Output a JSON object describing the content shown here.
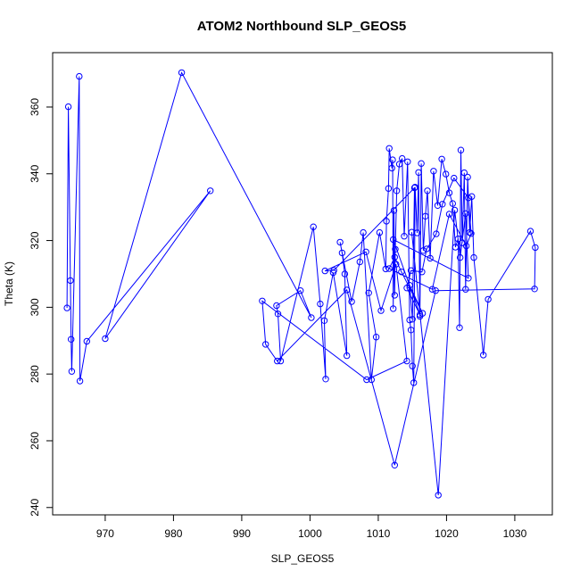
{
  "chart_data": {
    "type": "line",
    "title": "ATOM2 Northbound SLP_GEOS5",
    "xlabel": "SLP_GEOS5",
    "ylabel": "Theta (K)",
    "xlim": [
      962.3,
      1035.5
    ],
    "ylim": [
      237.8,
      376.3
    ],
    "xticks": [
      970,
      980,
      990,
      1000,
      1010,
      1020,
      1030
    ],
    "yticks": [
      240,
      260,
      280,
      300,
      320,
      340,
      360
    ],
    "markers": "open-circle",
    "line_color": "#0000ff",
    "series": [
      {
        "x": [
          964.4,
          964.6,
          964.9,
          965.0,
          965.1,
          966.2,
          966.3,
          967.3,
          985.4,
          970.0,
          981.2,
          1000.2,
          998.6,
          995.1,
          995.3,
          995.7,
          1000.5,
          1001.5,
          1002.3,
          1002.1,
          1003.4,
          1005.4,
          1005.1,
          1004.7,
          1004.4,
          1006.1,
          1007.3,
          1007.8,
          1009.0,
          1009.7,
          1008.6,
          1010.2,
          1011.1,
          1011.2,
          1011.5,
          1011.6,
          1012.0,
          1012.1,
          1012.2,
          1012.3,
          1012.4,
          1012.5,
          1012.7,
          1013.1,
          1013.5,
          1013.8,
          1014.3,
          1014.6,
          1014.8,
          1015.0,
          1015.2,
          1015.4,
          1015.7,
          1015.9,
          1016.1,
          1016.3,
          1016.6,
          1016.9,
          1017.2,
          1017.6,
          1018.1,
          1018.7,
          1019.3,
          1019.9,
          1020.4,
          1020.9,
          1021.3,
          1021.7,
          1021.9,
          1022.1,
          1022.3,
          1022.6,
          1022.8,
          1023.1,
          1023.4,
          1023.7,
          1024.0,
          1025.4,
          1026.1,
          1032.3,
          1033.0,
          1032.9,
          1018.4,
          1012.4,
          1005.4,
          995.2,
          993.5,
          993.0,
          1008.3,
          1014.2,
          1012.6,
          1010.4,
          1008.2,
          1002.2,
          1003.5,
          1015.3,
          1015.0,
          1014.6,
          1016.5,
          1013.4,
          1012.4,
          1011.6,
          1017.9,
          1020.4,
          1022.9,
          1023.6,
          1023.2,
          1021.1,
          1019.4,
          1018.5,
          1017.1,
          1016.4,
          1014.8,
          1014.2,
          1016.1,
          1012.2,
          1023.2,
          1022.8,
          1022.0,
          1021.2,
          1018.8,
          1014.9
        ],
        "y": [
          299.8,
          360.1,
          308.0,
          290.4,
          280.8,
          369.2,
          277.9,
          289.8,
          334.9,
          290.6,
          370.3,
          296.9,
          305.0,
          300.5,
          298.0,
          283.9,
          324.1,
          301.0,
          278.5,
          296.0,
          310.4,
          285.5,
          310.0,
          316.3,
          319.5,
          301.7,
          313.6,
          322.4,
          278.3,
          291.1,
          304.3,
          322.4,
          311.5,
          325.8,
          335.6,
          347.6,
          341.7,
          344.2,
          299.6,
          329.0,
          303.6,
          317.4,
          334.9,
          342.9,
          344.6,
          321.3,
          343.6,
          296.2,
          293.2,
          282.4,
          277.4,
          336.0,
          322.3,
          340.4,
          297.3,
          343.1,
          317.0,
          327.3,
          334.9,
          314.7,
          340.8,
          330.5,
          344.4,
          339.9,
          334.3,
          331.1,
          318.0,
          320.5,
          293.9,
          347.1,
          319.3,
          340.3,
          305.4,
          339.0,
          322.4,
          333.2,
          314.9,
          285.7,
          302.4,
          322.8,
          317.9,
          305.5,
          305.0,
          252.7,
          305.2,
          283.9,
          288.9,
          301.9,
          278.3,
          283.9,
          312.9,
          299.0,
          316.6,
          310.9,
          311.1,
          335.8,
          296.4,
          306.6,
          298.2,
          310.6,
          315.0,
          311.6,
          305.4,
          327.9,
          318.4,
          322.1,
          332.8,
          338.7,
          330.9,
          322.0,
          317.5,
          310.6,
          311.0,
          305.8,
          297.8,
          320.3,
          308.7,
          328.1,
          314.9,
          329.1,
          243.7,
          322.5
        ]
      }
    ]
  }
}
